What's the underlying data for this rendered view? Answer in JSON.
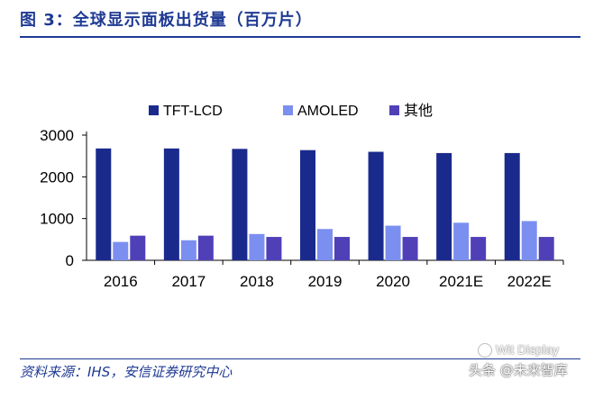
{
  "header": {
    "title": "图 3：全球显示面板出货量（百万片）"
  },
  "footer": {
    "source": "资料来源：IHS，安信证券研究中心"
  },
  "watermark": {
    "line1": "Wit Display",
    "line2": "头条 @未来智库"
  },
  "colors": {
    "tft_lcd": "#1a2a8c",
    "amoled": "#7b8ff0",
    "other": "#5040b8",
    "accent": "#1f3a93"
  },
  "chart_data": {
    "type": "bar",
    "title": "",
    "xlabel": "",
    "ylabel": "",
    "categories": [
      "2016",
      "2017",
      "2018",
      "2019",
      "2020",
      "2021E",
      "2022E"
    ],
    "series": [
      {
        "name": "TFT-LCD",
        "values": [
          2680,
          2680,
          2670,
          2640,
          2600,
          2570,
          2570
        ]
      },
      {
        "name": "AMOLED",
        "values": [
          440,
          480,
          630,
          750,
          830,
          900,
          940
        ]
      },
      {
        "name": "其他",
        "values": [
          590,
          590,
          560,
          560,
          560,
          560,
          560
        ]
      }
    ],
    "ylim": [
      0,
      3000
    ],
    "yticks": [
      0,
      1000,
      2000,
      3000
    ],
    "legend": "top",
    "grid": false
  }
}
